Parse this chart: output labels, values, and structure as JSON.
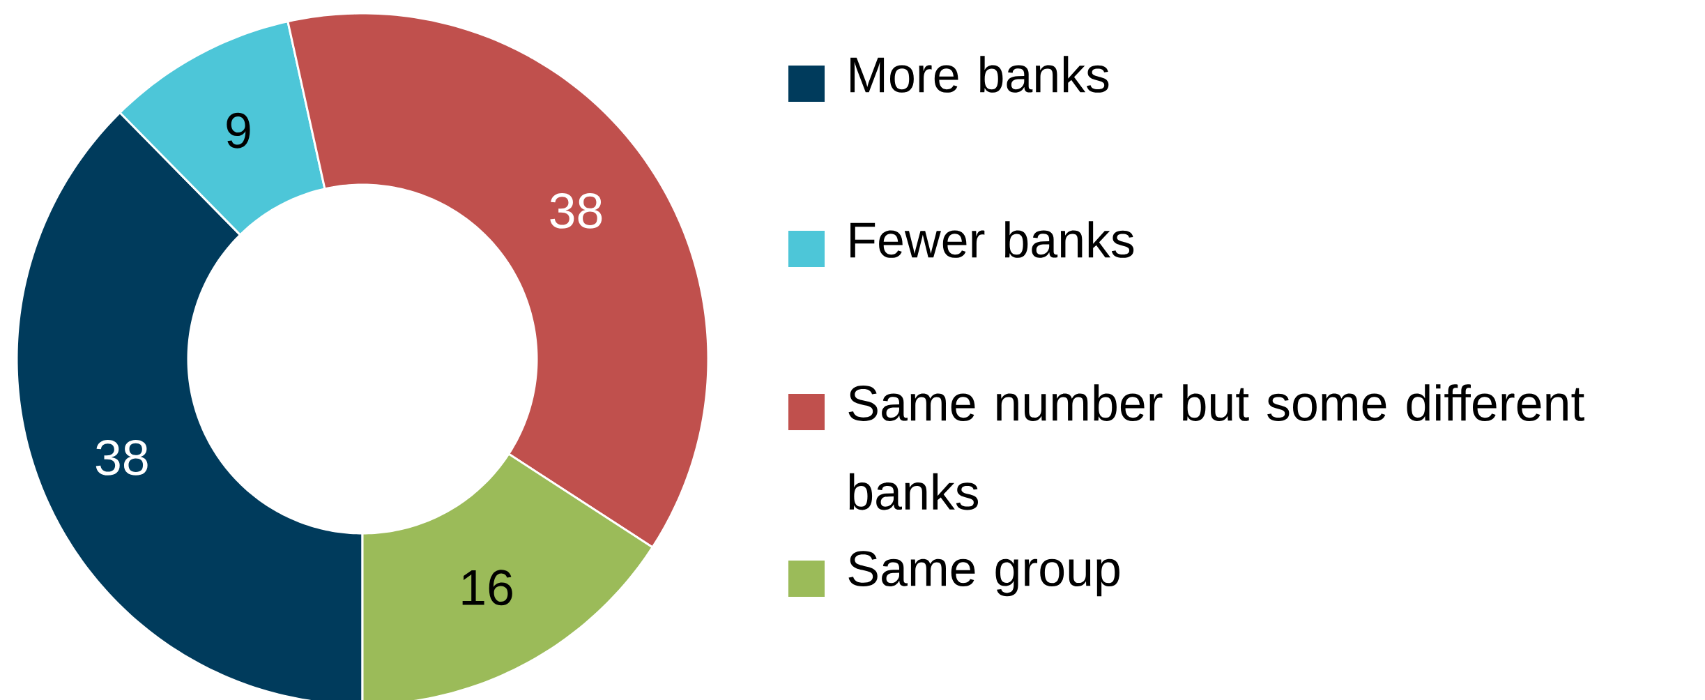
{
  "chart_data": {
    "type": "donut",
    "categories": [
      "More banks",
      "Fewer banks",
      "Same number but some different banks",
      "Same group"
    ],
    "values": [
      38,
      9,
      38,
      16
    ],
    "colors": [
      "#003b5c",
      "#4dc6d8",
      "#c0504d",
      "#9bbb59"
    ],
    "data_labels": true,
    "legend": "right"
  }
}
